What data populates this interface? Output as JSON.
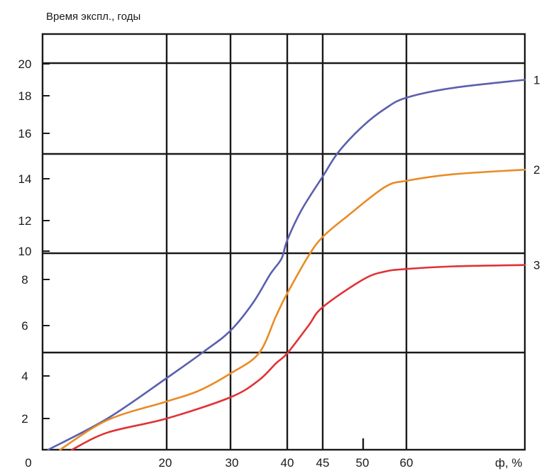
{
  "chart_data": {
    "type": "line",
    "ylabel": "Время экспл., годы",
    "xlabel": "ф, %",
    "x_ticks": [
      "0",
      "20",
      "30",
      "40",
      "45",
      "50",
      "60"
    ],
    "y_ticks": [
      "20",
      "18",
      "16",
      "14",
      "12",
      "10",
      "8",
      "6",
      "4",
      "2"
    ],
    "grid": true,
    "series": [
      {
        "name": "1",
        "color": "#5b5fae",
        "x": [
          0,
          10,
          20,
          26,
          30,
          34,
          37,
          39,
          40,
          42,
          45,
          47,
          50,
          55,
          60,
          70,
          85
        ],
        "y": [
          0,
          2.0,
          3.9,
          5.0,
          5.8,
          7.0,
          8.4,
          9.6,
          10.8,
          12.5,
          14.1,
          15.2,
          16.4,
          17.3,
          17.9,
          18.5,
          19.0
        ]
      },
      {
        "name": "2",
        "color": "#e98b25",
        "x": [
          2,
          10,
          20,
          25,
          30,
          35,
          38,
          40,
          43,
          45,
          48,
          55,
          60,
          70,
          85
        ],
        "y": [
          0,
          1.9,
          2.8,
          3.3,
          4.1,
          4.9,
          6.4,
          7.4,
          9.8,
          11.0,
          12.2,
          13.6,
          13.9,
          14.2,
          14.4
        ]
      },
      {
        "name": "3",
        "color": "#e03235",
        "x": [
          4,
          10,
          20,
          30,
          35,
          38,
          40,
          43,
          45,
          50,
          55,
          60,
          70,
          85
        ],
        "y": [
          0,
          1.1,
          2.0,
          3.0,
          3.8,
          4.5,
          4.9,
          6.0,
          6.8,
          8.0,
          8.6,
          8.8,
          9.0,
          9.1
        ]
      }
    ]
  }
}
